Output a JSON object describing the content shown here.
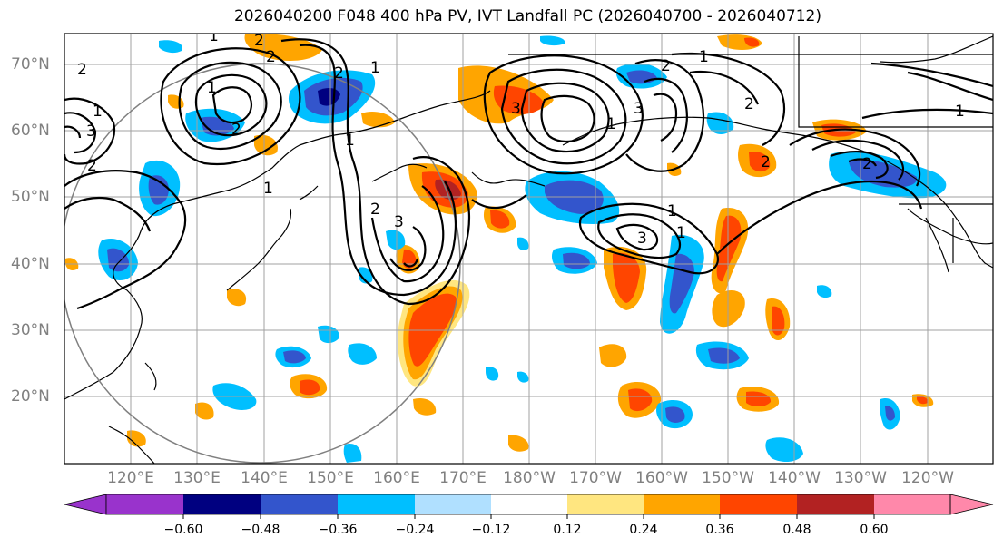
{
  "title": "2026040200 F048 400 hPa PV, IVT Landfall PC (2026040700 - 2026040712)",
  "latitude_labels": [
    "70°N",
    "60°N",
    "50°N",
    "40°N",
    "30°N",
    "20°N"
  ],
  "longitude_labels": [
    "120°E",
    "130°E",
    "140°E",
    "150°E",
    "160°E",
    "170°E",
    "180°W",
    "170°W",
    "160°W",
    "150°W",
    "140°W",
    "130°W",
    "120°W"
  ],
  "colorbar": {
    "tick_labels": [
      "−0.60",
      "−0.48",
      "−0.36",
      "−0.24",
      "−0.12",
      "0.12",
      "0.24",
      "0.36",
      "0.48",
      "0.60"
    ],
    "colors": [
      "#9933cc",
      "#000080",
      "#3355cc",
      "#00bfff",
      "#b0e0ff",
      "#ffffff",
      "#ffe680",
      "#ffa500",
      "#ff4500",
      "#b22222",
      "#ff88aa"
    ]
  },
  "contour_labels": [
    "2",
    "2",
    "1",
    "3",
    "2",
    "2",
    "1",
    "1",
    "2",
    "2",
    "2",
    "3",
    "1",
    "1",
    "1",
    "3",
    "3",
    "1",
    "2",
    "1",
    "2",
    "2",
    "3",
    "1",
    "1",
    "2",
    "1"
  ],
  "colors": {
    "background": "#ffffff",
    "grid": "#a0a0a0",
    "contour": "#000000",
    "coast": "#000000",
    "circle": "#808080"
  }
}
